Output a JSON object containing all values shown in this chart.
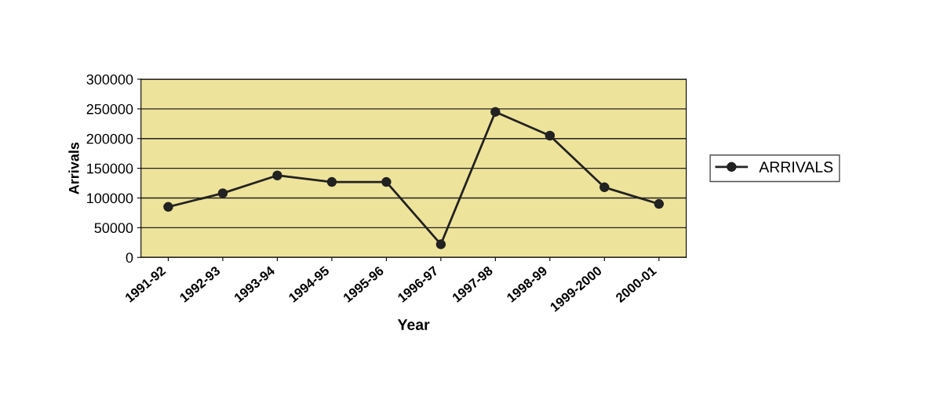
{
  "chart_data": {
    "type": "line",
    "xlabel": "Year",
    "ylabel": "Arrivals",
    "categories": [
      "1991-92",
      "1992-93",
      "1993-94",
      "1994-95",
      "1995-96",
      "1996-97",
      "1997-98",
      "1998-99",
      "1999-2000",
      "2000-01"
    ],
    "series": [
      {
        "name": "ARRIVALS",
        "color": "#222222",
        "values": [
          85000,
          108000,
          138000,
          127000,
          127000,
          22000,
          245000,
          205000,
          118000,
          90000
        ]
      }
    ],
    "ylim": [
      0,
      300000
    ],
    "yticks": [
      0,
      50000,
      100000,
      150000,
      200000,
      250000,
      300000
    ],
    "grid": "y",
    "legend": "right",
    "marker": "circle",
    "line_style": "solid"
  }
}
